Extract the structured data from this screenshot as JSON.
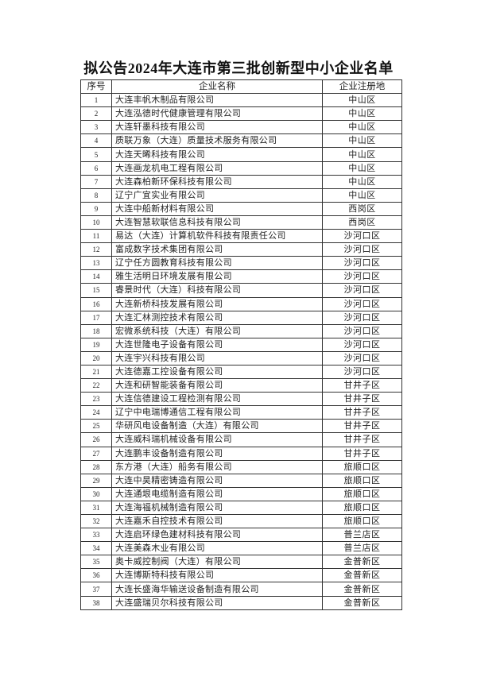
{
  "title": "拟公告2024年大连市第三批创新型中小企业名单",
  "table": {
    "headers": [
      "序号",
      "企业名称",
      "企业注册地"
    ],
    "rows": [
      {
        "no": "1",
        "name": "大连丰帆木制品有限公司",
        "area": "中山区"
      },
      {
        "no": "2",
        "name": "大连泓德时代健康管理有限公司",
        "area": "中山区"
      },
      {
        "no": "3",
        "name": "大连轩墨科技有限公司",
        "area": "中山区"
      },
      {
        "no": "4",
        "name": "质联万象（大连）质量技术服务有限公司",
        "area": "中山区"
      },
      {
        "no": "5",
        "name": "大连天晞科技有限公司",
        "area": "中山区"
      },
      {
        "no": "6",
        "name": "大连画龙机电工程有限公司",
        "area": "中山区"
      },
      {
        "no": "7",
        "name": "大连森柏新环保科技有限公司",
        "area": "中山区"
      },
      {
        "no": "8",
        "name": "辽宁广宜实业有限公司",
        "area": "中山区"
      },
      {
        "no": "9",
        "name": "大连中船新材料有限公司",
        "area": "西岗区"
      },
      {
        "no": "10",
        "name": "大连智慧软联信息科技有限公司",
        "area": "西岗区"
      },
      {
        "no": "11",
        "name": "易达（大连）计算机软件科技有限责任公司",
        "area": "沙河口区"
      },
      {
        "no": "12",
        "name": "富成数字技术集团有限公司",
        "area": "沙河口区"
      },
      {
        "no": "13",
        "name": "辽宁任方圆教育科技有限公司",
        "area": "沙河口区"
      },
      {
        "no": "14",
        "name": "雅生活明日环境发展有限公司",
        "area": "沙河口区"
      },
      {
        "no": "15",
        "name": "睿景时代（大连）科技有限公司",
        "area": "沙河口区"
      },
      {
        "no": "16",
        "name": "大连新桥科技发展有限公司",
        "area": "沙河口区"
      },
      {
        "no": "17",
        "name": "大连汇林测控技术有限公司",
        "area": "沙河口区"
      },
      {
        "no": "18",
        "name": "宏微系统科技（大连）有限公司",
        "area": "沙河口区"
      },
      {
        "no": "19",
        "name": "大连世隆电子设备有限公司",
        "area": "沙河口区"
      },
      {
        "no": "20",
        "name": "大连宇兴科技有限公司",
        "area": "沙河口区"
      },
      {
        "no": "21",
        "name": "大连德嘉工控设备有限公司",
        "area": "沙河口区"
      },
      {
        "no": "22",
        "name": "大连和研智能装备有限公司",
        "area": "甘井子区"
      },
      {
        "no": "23",
        "name": "大连信德建设工程检测有限公司",
        "area": "甘井子区"
      },
      {
        "no": "24",
        "name": "辽宁中电瑞博通信工程有限公司",
        "area": "甘井子区"
      },
      {
        "no": "25",
        "name": "华研风电设备制造（大连）有限公司",
        "area": "甘井子区"
      },
      {
        "no": "26",
        "name": "大连威科瑞机械设备有限公司",
        "area": "甘井子区"
      },
      {
        "no": "27",
        "name": "大连鹏丰设备制造有限公司",
        "area": "甘井子区"
      },
      {
        "no": "28",
        "name": "东方港（大连）船务有限公司",
        "area": "旅顺口区"
      },
      {
        "no": "29",
        "name": "大连中昊精密铸造有限公司",
        "area": "旅顺口区"
      },
      {
        "no": "30",
        "name": "大连通垠电缆制造有限公司",
        "area": "旅顺口区"
      },
      {
        "no": "31",
        "name": "大连海福机械制造有限公司",
        "area": "旅顺口区"
      },
      {
        "no": "32",
        "name": "大连嘉禾自控技术有限公司",
        "area": "旅顺口区"
      },
      {
        "no": "33",
        "name": "大连启环绿色建材科技有限公司",
        "area": "普兰店区"
      },
      {
        "no": "34",
        "name": "大连美森木业有限公司",
        "area": "普兰店区"
      },
      {
        "no": "35",
        "name": "奥卡威控制阀（大连）有限公司",
        "area": "金普新区"
      },
      {
        "no": "36",
        "name": "大连博斯特科技有限公司",
        "area": "金普新区"
      },
      {
        "no": "37",
        "name": "大连长盛海华输送设备制造有限公司",
        "area": "金普新区"
      },
      {
        "no": "38",
        "name": "大连盛瑞贝尔科技有限公司",
        "area": "金普新区"
      }
    ]
  }
}
